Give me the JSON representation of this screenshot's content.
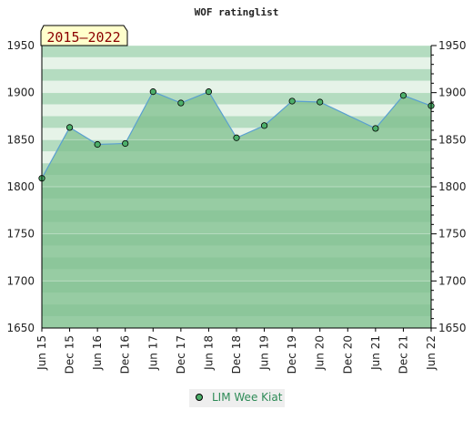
{
  "chart_data": {
    "type": "area",
    "title": "WOF ratinglist",
    "period_label": "2015–2022",
    "xlabel": "",
    "ylabel": "",
    "ylim": [
      1650,
      1950
    ],
    "yticks": [
      1650,
      1700,
      1750,
      1800,
      1850,
      1900,
      1950
    ],
    "grid": true,
    "legend_position": "bottom-center",
    "categories": [
      "Jun 15",
      "Dec 15",
      "Jun 16",
      "Dec 16",
      "Jun 17",
      "Dec 17",
      "Jun 18",
      "Dec 18",
      "Jun 19",
      "Dec 19",
      "Jun 20",
      "Dec 20",
      "Jun 21",
      "Dec 21",
      "Jun 22"
    ],
    "series": [
      {
        "name": "LIM Wee Kiat",
        "points": [
          {
            "x": "Jun 15",
            "y": 1809
          },
          {
            "x": "Dec 15",
            "y": 1863
          },
          {
            "x": "Jun 16",
            "y": 1845
          },
          {
            "x": "Dec 16",
            "y": 1846
          },
          {
            "x": "Jun 17",
            "y": 1901
          },
          {
            "x": "Dec 17",
            "y": 1889
          },
          {
            "x": "Jun 18",
            "y": 1901
          },
          {
            "x": "Dec 18",
            "y": 1852
          },
          {
            "x": "Jun 19",
            "y": 1865
          },
          {
            "x": "Dec 19",
            "y": 1891
          },
          {
            "x": "Jun 20",
            "y": 1890
          },
          {
            "x": "Jun 21",
            "y": 1862
          },
          {
            "x": "Dec 21",
            "y": 1897
          },
          {
            "x": "Jun 22",
            "y": 1886
          }
        ]
      }
    ],
    "colors": {
      "line": "#5aa0d0",
      "marker": "#4caf6a",
      "area": "#80c090",
      "band_light": "#e6f3e8",
      "band_dark": "#b4dcc0",
      "badge_fill": "#ffffcc",
      "legend_text": "#2e8b57"
    }
  }
}
